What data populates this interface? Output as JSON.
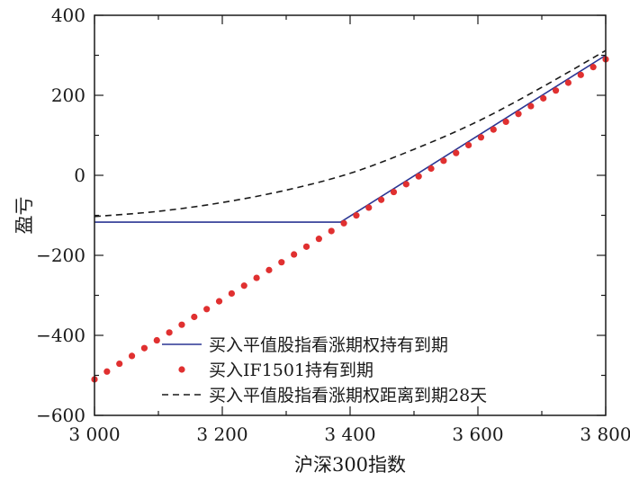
{
  "chart_data": {
    "type": "line",
    "title": "",
    "xlabel": "沪深300指数",
    "ylabel": "盈亏",
    "xlim": [
      3000,
      3800
    ],
    "ylim": [
      -600,
      400
    ],
    "xticks": [
      3000,
      3200,
      3400,
      3600,
      3800
    ],
    "xtick_labels": [
      "3 000",
      "3 200",
      "3 400",
      "3 600",
      "3 800"
    ],
    "yticks": [
      -600,
      -400,
      -200,
      0,
      200,
      400
    ],
    "ytick_labels": [
      "−600",
      "−400",
      "−200",
      "0",
      "200",
      "400"
    ],
    "grid": false,
    "legend_position": "bottom-right",
    "series": [
      {
        "name": "买入平值股指看涨期权持有到期",
        "style": "solid",
        "color": "#2a3593",
        "x": [
          3000,
          3385,
          3800
        ],
        "y": [
          -117,
          -117,
          300
        ]
      },
      {
        "name": "买入IF1501持有到期",
        "style": "dots",
        "color": "#e03030",
        "x": [
          3000,
          3800
        ],
        "y": [
          -510,
          290
        ],
        "n_points": 42
      },
      {
        "name": "买入平值股指看涨期权距离到期28天",
        "style": "dashed",
        "color": "#1a1a1a",
        "x": [
          3000,
          3100,
          3200,
          3300,
          3400,
          3500,
          3600,
          3700,
          3800
        ],
        "y": [
          -103,
          -90,
          -68,
          -37,
          5,
          65,
          135,
          220,
          312
        ]
      }
    ]
  }
}
